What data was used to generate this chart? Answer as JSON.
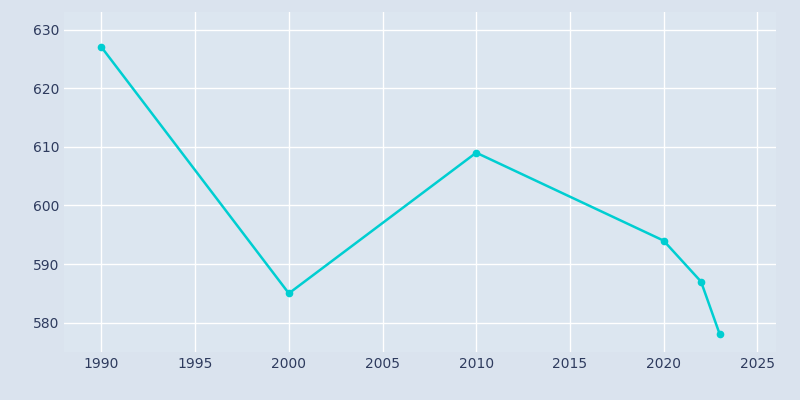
{
  "years": [
    1990,
    2000,
    2010,
    2020,
    2022,
    2023
  ],
  "population": [
    627,
    585,
    609,
    594,
    587,
    578
  ],
  "line_color": "#00CED1",
  "background_color": "#DAE3EE",
  "plot_bg_color": "#DCE6F0",
  "grid_color": "#FFFFFF",
  "text_color": "#2E3B5E",
  "xlim": [
    1988,
    2026
  ],
  "ylim": [
    575,
    633
  ],
  "xticks": [
    1990,
    1995,
    2000,
    2005,
    2010,
    2015,
    2020,
    2025
  ],
  "yticks": [
    580,
    590,
    600,
    610,
    620,
    630
  ],
  "linewidth": 1.8,
  "markersize": 4.5,
  "figsize": [
    8.0,
    4.0
  ],
  "dpi": 100
}
